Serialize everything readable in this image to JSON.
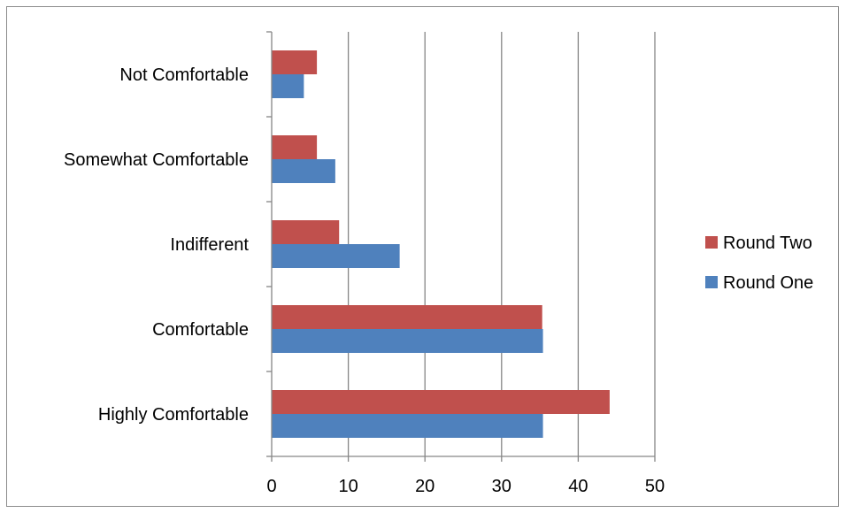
{
  "chart_data": {
    "type": "bar",
    "orientation": "horizontal",
    "categories": [
      "Highly Comfortable",
      "Comfortable",
      "Indifferent",
      "Somewhat Comfortable",
      "Not Comfortable"
    ],
    "series": [
      {
        "name": "Round One",
        "color": "#4f81bd",
        "values": [
          35.4,
          35.4,
          16.7,
          8.3,
          4.2
        ]
      },
      {
        "name": "Round Two",
        "color": "#c0504d",
        "values": [
          44.1,
          35.3,
          8.8,
          5.9,
          5.9
        ]
      }
    ],
    "xlim": [
      0,
      50
    ],
    "xticks": [
      0,
      10,
      20,
      30,
      40,
      50
    ],
    "grid": "vertical",
    "legend": "right",
    "title": "",
    "xlabel": "",
    "ylabel": ""
  }
}
